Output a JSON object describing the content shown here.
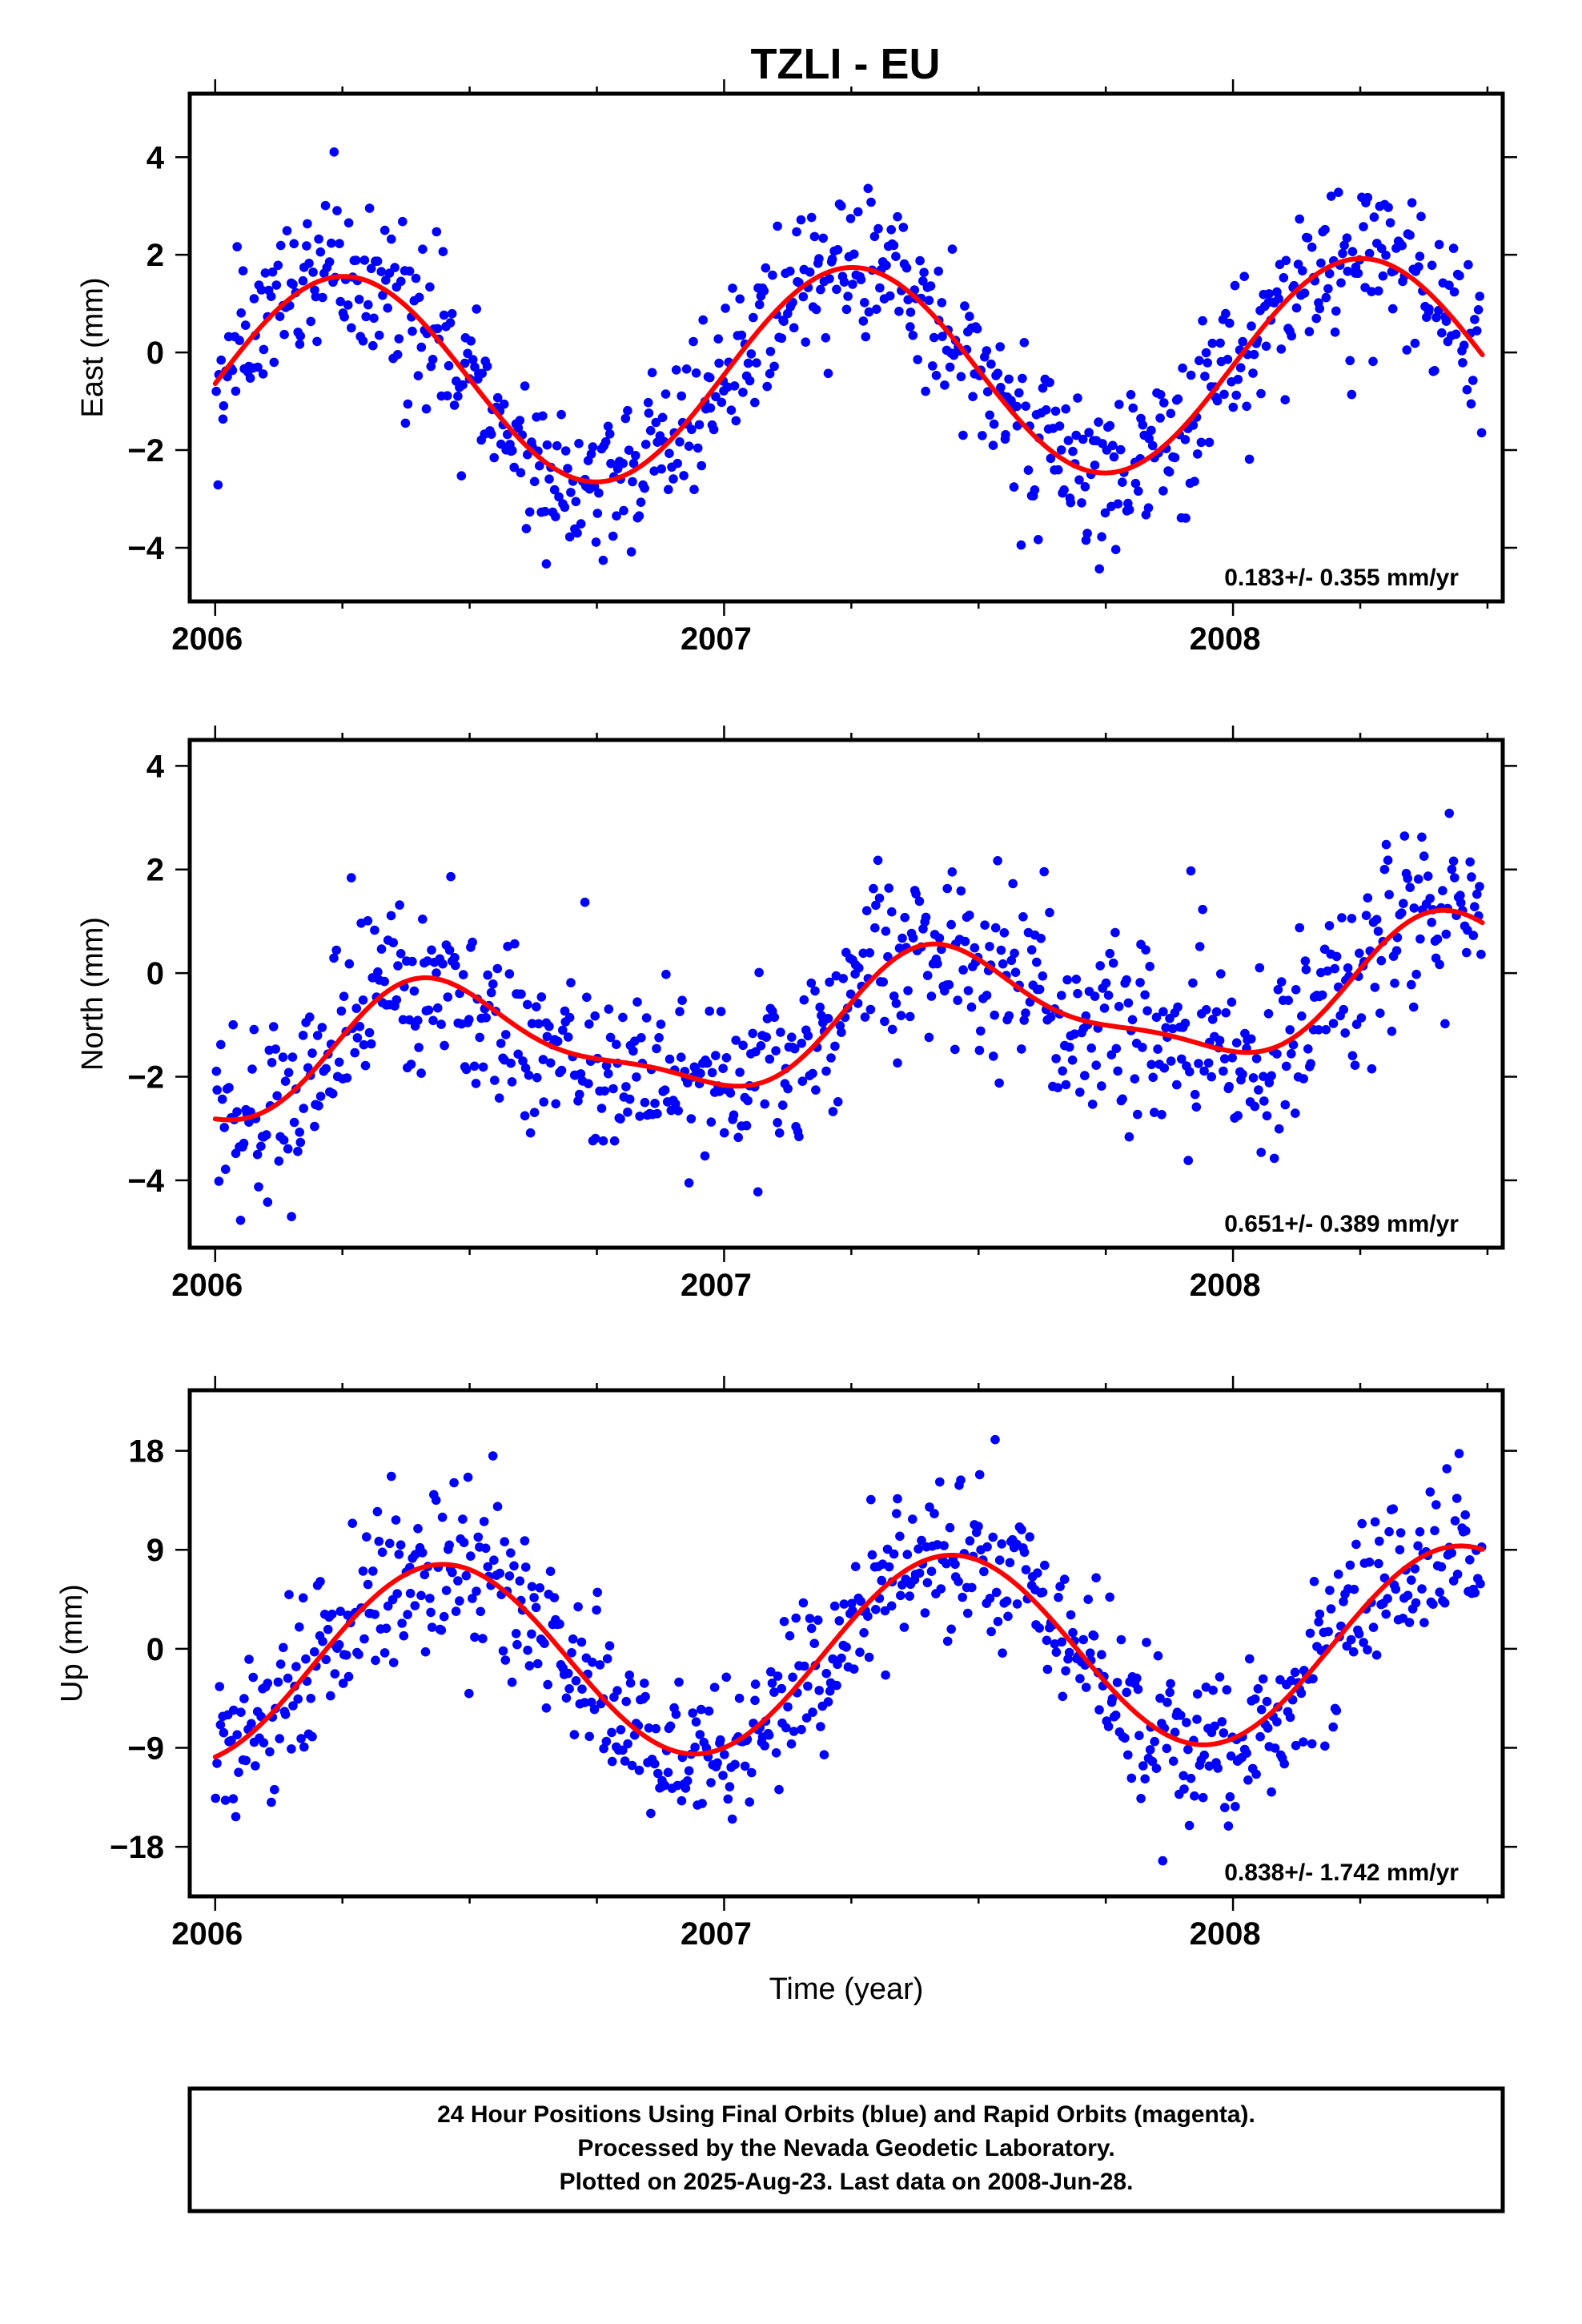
{
  "colors": {
    "final_orbits": "#0000ff",
    "rapid_orbits": "#ff00ff",
    "fit_curve": "#ff0000",
    "frame": "#000000",
    "background": "#ffffff"
  },
  "chart_data": [
    {
      "type": "scatter",
      "title": "TZLI - EU",
      "xlabel": "",
      "ylabel": "East (mm)",
      "xlim": [
        2005.95,
        2008.53
      ],
      "ylim": [
        -5.1,
        5.3
      ],
      "xticks": [
        2006,
        2007,
        2008
      ],
      "xtick_labels": [
        "2006",
        "2007",
        "2008"
      ],
      "yticks": [
        -4,
        -2,
        0,
        2,
        4
      ],
      "ytick_labels": [
        "−4",
        "−2",
        "0",
        "2",
        "4"
      ],
      "rate_label": "0.183+/- 0.355 mm/yr",
      "grid": false,
      "model": {
        "offset": -0.41,
        "rate": 0.183,
        "annual_cos": 0.0,
        "annual_sin": 2.15,
        "semi_cos": 0.0,
        "semi_sin": 0.0
      },
      "scatter_sd": 0.85,
      "x_range": [
        2006.0,
        2008.49
      ],
      "series": [
        {
          "name": "24 Hour Positions (Final Orbits)",
          "color": "#0000ff",
          "point_count": 760,
          "x_range": [
            2006.0,
            2008.49
          ]
        }
      ]
    },
    {
      "type": "scatter",
      "title": "",
      "xlabel": "",
      "ylabel": "North (mm)",
      "xlim": [
        2005.95,
        2008.53
      ],
      "ylim": [
        -5.3,
        4.5
      ],
      "xticks": [
        2006,
        2007,
        2008
      ],
      "xtick_labels": [
        "2006",
        "2007",
        "2008"
      ],
      "yticks": [
        -4,
        -2,
        0,
        2,
        4
      ],
      "ytick_labels": [
        "−4",
        "−2",
        "0",
        "2",
        "4"
      ],
      "rate_label": "0.651+/- 0.389 mm/yr",
      "grid": false,
      "model": {
        "offset": -0.95,
        "rate": 0.651,
        "annual_cos": -1.05,
        "annual_sin": 0.38,
        "semi_cos": 0.0,
        "semi_sin": -0.35
      },
      "scatter_sd": 0.9,
      "x_range": [
        2006.0,
        2008.49
      ],
      "series": [
        {
          "name": "24 Hour Positions (Final Orbits)",
          "color": "#0000ff",
          "point_count": 760,
          "x_range": [
            2006.0,
            2008.49
          ]
        }
      ]
    },
    {
      "type": "scatter",
      "title": "",
      "xlabel": "Time (year)",
      "ylabel": "Up (mm)",
      "xlim": [
        2005.95,
        2008.53
      ],
      "ylim": [
        -22.5,
        23.5
      ],
      "xticks": [
        2006,
        2007,
        2008
      ],
      "xtick_labels": [
        "2006",
        "2007",
        "2008"
      ],
      "yticks": [
        -18,
        -9,
        0,
        9,
        18
      ],
      "ytick_labels": [
        "−18",
        "−9",
        "0",
        "9",
        "18"
      ],
      "rate_label": "0.838+/- 1.742 mm/yr",
      "grid": false,
      "model": {
        "offset": -0.48,
        "rate": 0.838,
        "annual_cos": -8.3,
        "annual_sin": 3.0,
        "semi_cos": 0.0,
        "semi_sin": 0.0
      },
      "scatter_sd": 3.6,
      "x_range": [
        2006.0,
        2008.49
      ],
      "series": [
        {
          "name": "24 Hour Positions (Final Orbits)",
          "color": "#0000ff",
          "point_count": 760,
          "x_range": [
            2006.0,
            2008.49
          ]
        }
      ]
    }
  ],
  "caption": {
    "lines": [
      "24 Hour Positions Using Final Orbits (blue) and Rapid Orbits (magenta).",
      "Processed by the Nevada Geodetic Laboratory.",
      "Plotted on 2025-Aug-23. Last data on 2008-Jun-28."
    ]
  }
}
